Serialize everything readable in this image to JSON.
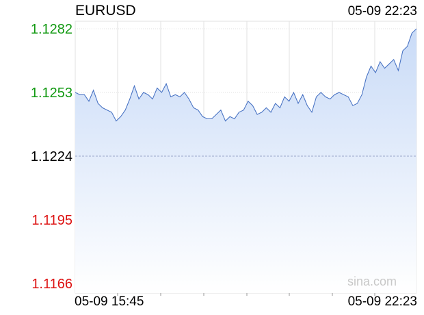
{
  "header": {
    "symbol": "EURUSD",
    "timestamp": "05-09 22:23"
  },
  "watermark": "sina.com",
  "colors": {
    "line": "#4a74c4",
    "fill_top": "#c9dbf7",
    "fill_bottom": "#ffffff",
    "up": "#119911",
    "down": "#dd1111",
    "base": "#000000",
    "grid": "#e2e2e2",
    "base_line": "#9aa6c8"
  },
  "chart_data": {
    "type": "area",
    "title": "EURUSD",
    "x_labels": [
      "05-09 15:45",
      "05-09 22:23"
    ],
    "ylim": [
      1.1166,
      1.1282
    ],
    "y_ticks": [
      {
        "label": "1.1282",
        "value": 1.1282,
        "color": "#119911"
      },
      {
        "label": "1.1253",
        "value": 1.1253,
        "color": "#119911"
      },
      {
        "label": "1.1224",
        "value": 1.1224,
        "color": "#000000"
      },
      {
        "label": "1.1195",
        "value": 1.1195,
        "color": "#dd1111"
      },
      {
        "label": "1.1166",
        "value": 1.1166,
        "color": "#dd1111"
      }
    ],
    "base_price": 1.1224,
    "grid": true,
    "values": [
      1.1253,
      1.1252,
      1.1252,
      1.1249,
      1.1254,
      1.1248,
      1.1246,
      1.1245,
      1.1244,
      1.124,
      1.1242,
      1.1245,
      1.125,
      1.1256,
      1.125,
      1.1253,
      1.1252,
      1.125,
      1.1255,
      1.1253,
      1.1257,
      1.1251,
      1.1252,
      1.1251,
      1.1253,
      1.125,
      1.1246,
      1.1245,
      1.1242,
      1.1241,
      1.1241,
      1.1243,
      1.1245,
      1.124,
      1.1242,
      1.1241,
      1.1244,
      1.1245,
      1.1249,
      1.1247,
      1.1243,
      1.1244,
      1.1246,
      1.1244,
      1.1248,
      1.1246,
      1.1251,
      1.1249,
      1.1253,
      1.1248,
      1.1252,
      1.1247,
      1.1244,
      1.1251,
      1.1253,
      1.1251,
      1.125,
      1.1252,
      1.1253,
      1.1252,
      1.1251,
      1.1247,
      1.1248,
      1.1252,
      1.126,
      1.1265,
      1.1262,
      1.1267,
      1.1264,
      1.1266,
      1.1268,
      1.1263,
      1.1272,
      1.1274,
      1.128,
      1.1282
    ]
  }
}
